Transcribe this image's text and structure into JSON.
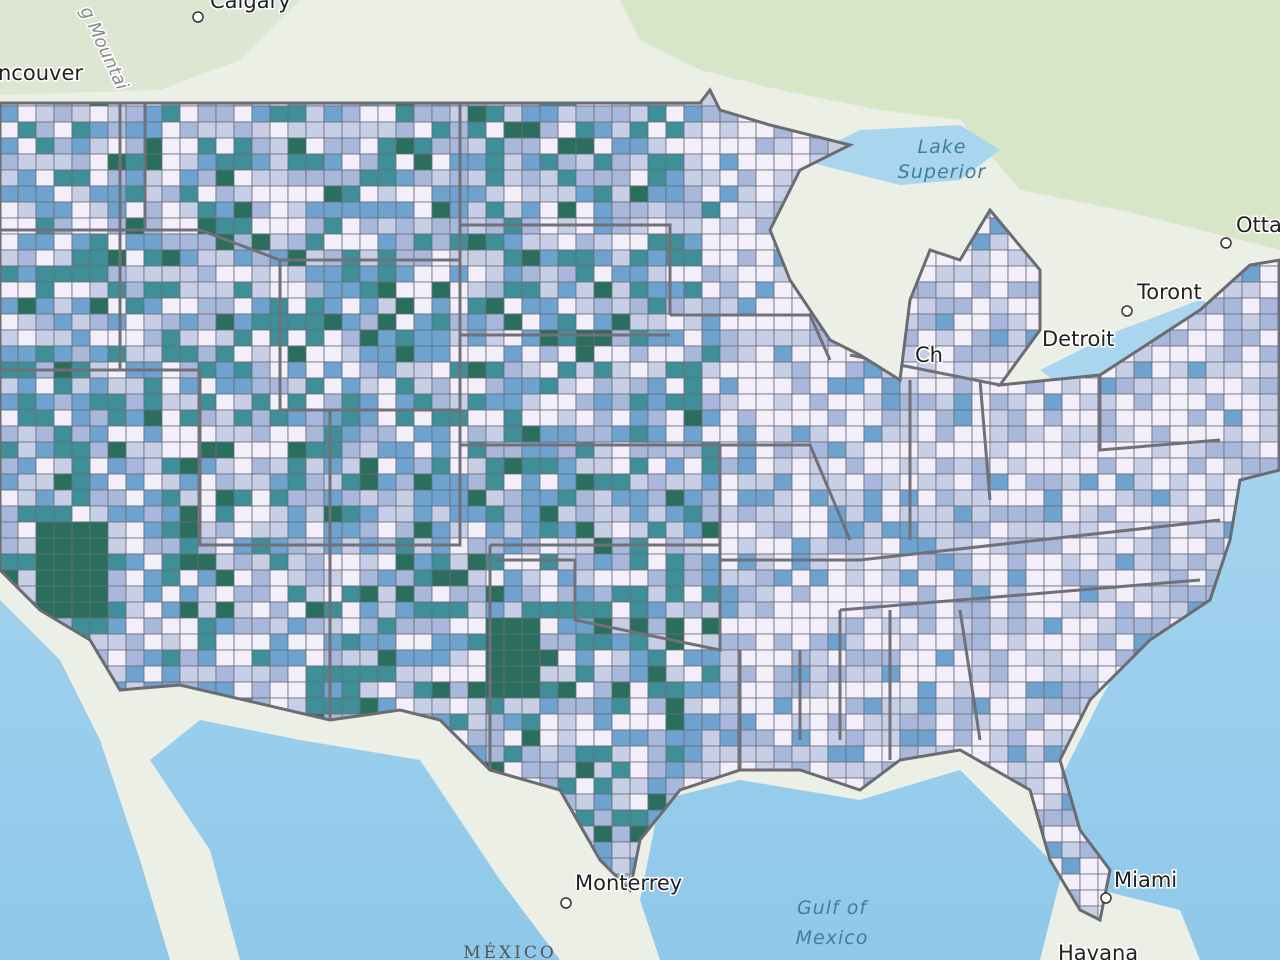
{
  "map": {
    "labels": {
      "calgary": "Calgary",
      "mountains": "g Mountai",
      "vancouver": "ncouver",
      "lake_superior_1": "Lake",
      "lake_superior_2": "Superior",
      "ottawa": "Otta",
      "toronto": "Toront",
      "detroit": "Detroit",
      "chicago": "Ch",
      "monterrey": "Monterrey",
      "miami": "Miami",
      "gulf_1": "Gulf of",
      "gulf_2": "Mexico",
      "mexico": "MÉXICO",
      "havana": "Havana"
    }
  }
}
